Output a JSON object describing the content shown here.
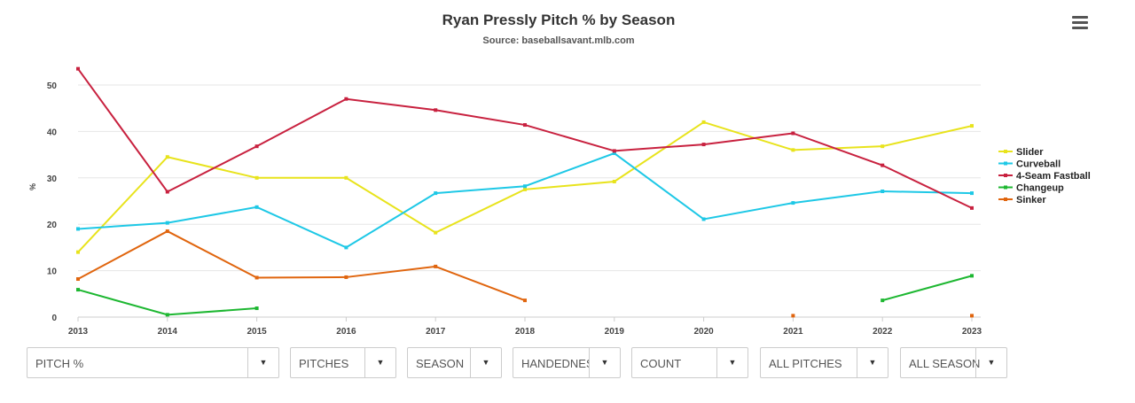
{
  "chart_data": {
    "type": "line",
    "title": "Ryan Pressly Pitch % by Season",
    "subtitle": "Source: baseballsavant.mlb.com",
    "ylabel": "%",
    "xlabel": "",
    "categories": [
      "2013",
      "2014",
      "2015",
      "2016",
      "2017",
      "2018",
      "2019",
      "2020",
      "2021",
      "2022",
      "2023"
    ],
    "ylim": [
      0,
      55
    ],
    "yticks": [
      0,
      10,
      20,
      30,
      40,
      50
    ],
    "grid": true,
    "legend_position": "right",
    "series": [
      {
        "name": "Slider",
        "color": "#e8e31c",
        "values": [
          14,
          34.5,
          30,
          30,
          18.2,
          27.5,
          29.2,
          42,
          36,
          36.8,
          41.2
        ]
      },
      {
        "name": "Curveball",
        "color": "#1ec8e6",
        "values": [
          19,
          20.3,
          23.7,
          15,
          26.7,
          28.2,
          35.3,
          21.1,
          24.6,
          27.1,
          26.7
        ]
      },
      {
        "name": "4-Seam Fastball",
        "color": "#c8213f",
        "values": [
          53.5,
          27,
          36.8,
          47,
          44.6,
          41.4,
          35.8,
          37.2,
          39.6,
          32.7,
          23.5
        ]
      },
      {
        "name": "Changeup",
        "color": "#1db731",
        "values": [
          5.9,
          0.5,
          1.9,
          null,
          null,
          null,
          null,
          null,
          null,
          3.6,
          8.9
        ]
      },
      {
        "name": "Sinker",
        "color": "#e0650e",
        "values": [
          8.2,
          18.5,
          8.5,
          8.6,
          10.9,
          3.6,
          null,
          null,
          0.3,
          null,
          0.3
        ]
      }
    ]
  },
  "menu_icon": "hamburger-menu-icon",
  "controls": [
    {
      "label": "PITCH %"
    },
    {
      "label": "PITCHES"
    },
    {
      "label": "SEASON"
    },
    {
      "label": "HANDEDNESS"
    },
    {
      "label": "COUNT"
    },
    {
      "label": "ALL PITCHES"
    },
    {
      "label": "ALL SEASONS"
    }
  ]
}
